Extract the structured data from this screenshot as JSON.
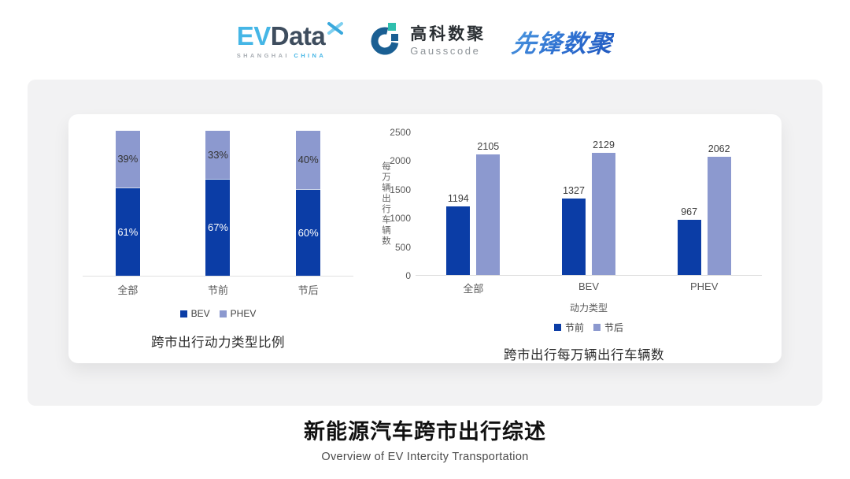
{
  "header": {
    "evdata_logo": {
      "part1": "EV",
      "part2": "Data",
      "sub1": "SHANGHAI",
      "sub2": "CHINA"
    },
    "gausscode_logo": {
      "cn": "高科数聚",
      "en": "Gausscode"
    },
    "pioneer_logo": {
      "text": "先锋数聚"
    }
  },
  "colors": {
    "series_dark": "#0b3da6",
    "series_light": "#8c99cf",
    "card_gray": "#f2f2f3",
    "evdata_cyan": "#45b6e6",
    "evdata_slate": "#3e4d5e",
    "gauss_navy": "#1a5f93",
    "gauss_teal": "#2fbfae",
    "pioneer_blue": "#2d6fd0"
  },
  "chart_data": [
    {
      "type": "bar",
      "variant": "stacked-percent",
      "title": "跨市出行动力类型比例",
      "categories": [
        "全部",
        "节前",
        "节后"
      ],
      "series": [
        {
          "name": "BEV",
          "color": "#0b3da6",
          "label_color": "#ffffff",
          "values": [
            61,
            67,
            60
          ]
        },
        {
          "name": "PHEV",
          "color": "#8c99cf",
          "label_color": "#333333",
          "values": [
            39,
            33,
            40
          ]
        }
      ],
      "label_suffix": "%",
      "ylim": [
        0,
        100
      ],
      "grid": false,
      "legend_position": "bottom"
    },
    {
      "type": "bar",
      "variant": "grouped",
      "title": "跨市出行每万辆出行车辆数",
      "categories": [
        "全部",
        "BEV",
        "PHEV"
      ],
      "xlabel": "动力类型",
      "ylabel": "每万辆出行车辆数",
      "ylim": [
        0,
        2500
      ],
      "yticks": [
        0,
        500,
        1000,
        1500,
        2000,
        2500
      ],
      "series": [
        {
          "name": "节前",
          "color": "#0b3da6",
          "values": [
            1194,
            1327,
            967
          ]
        },
        {
          "name": "节后",
          "color": "#8c99cf",
          "values": [
            2105,
            2129,
            2062
          ]
        }
      ],
      "grid": false,
      "legend_position": "bottom"
    }
  ],
  "footer": {
    "title": "新能源汽车跨市出行综述",
    "subtitle": "Overview of EV Intercity Transportation"
  }
}
